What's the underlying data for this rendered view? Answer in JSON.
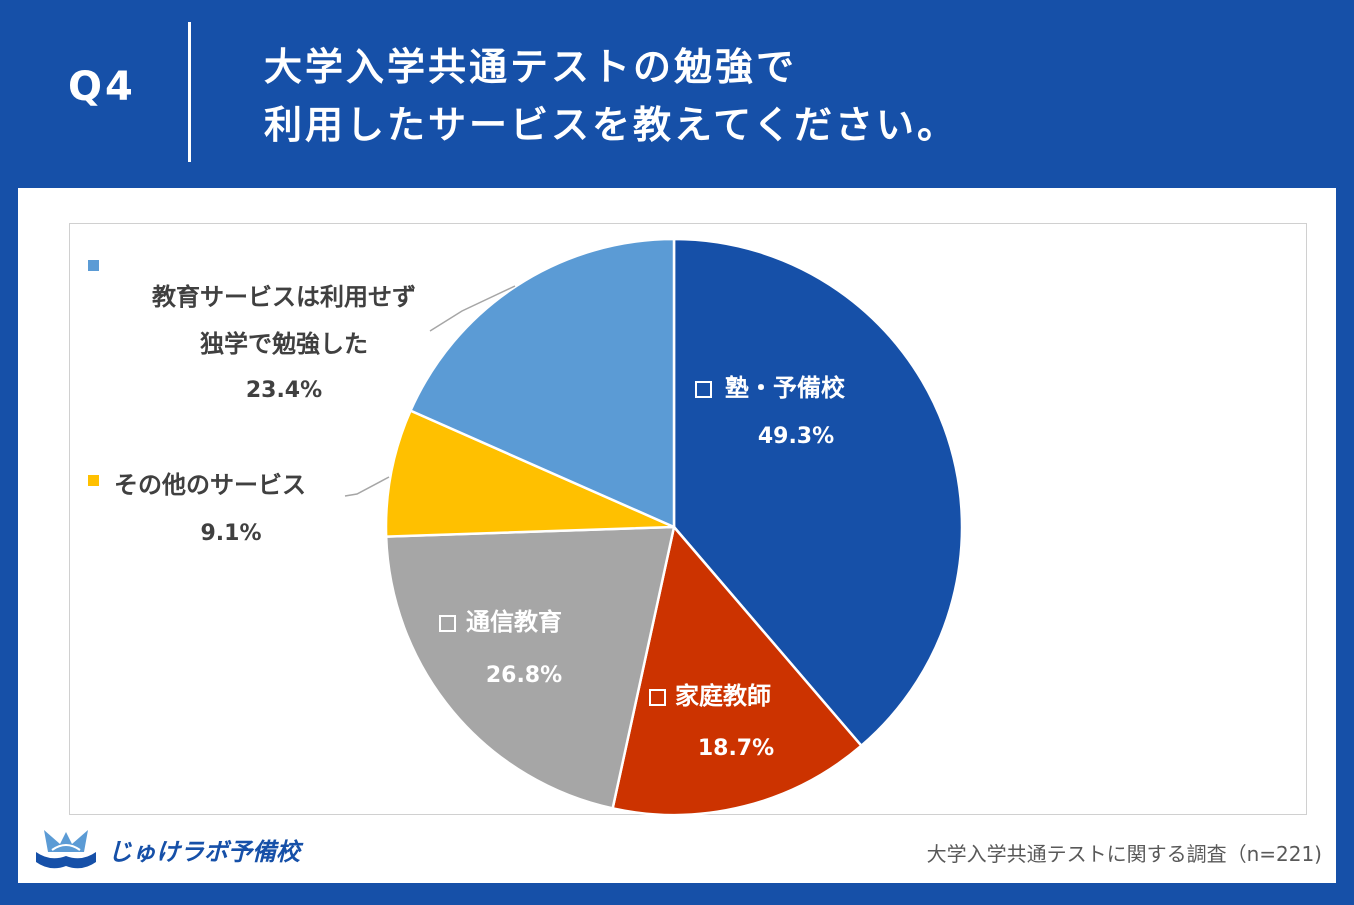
{
  "header": {
    "question_number": "Q4",
    "title_line1": "大学入学共通テストの勉強で",
    "title_line2": "利用したサービスを教えてください。"
  },
  "chart_data": {
    "type": "pie",
    "slices": [
      {
        "label": "塾・予備校",
        "display_label": "塾・予備校",
        "value_label": "49.3%",
        "value": 49.3,
        "color": "#1650a8"
      },
      {
        "label": "家庭教師",
        "display_label": "家庭教師",
        "value_label": "18.7%",
        "value": 18.7,
        "color": "#cc3300"
      },
      {
        "label": "通信教育",
        "display_label": "通信教育",
        "value_label": "26.8%",
        "value": 26.8,
        "color": "#a6a6a6"
      },
      {
        "label": "その他のサービス",
        "display_label": "その他のサービス",
        "value_label": "9.1%",
        "value": 9.1,
        "color": "#ffc000"
      },
      {
        "label": "教育サービスは利用せず独学で勉強した",
        "display_label": "教育サービスは利用せず",
        "display_label2": "独学で勉強した",
        "value_label": "23.4%",
        "value": 23.4,
        "color": "#5b9bd5"
      }
    ]
  },
  "footer": {
    "logo_text": "じゅけラボ予備校",
    "survey_note": "大学入学共通テストに関する調査（n=221)"
  }
}
